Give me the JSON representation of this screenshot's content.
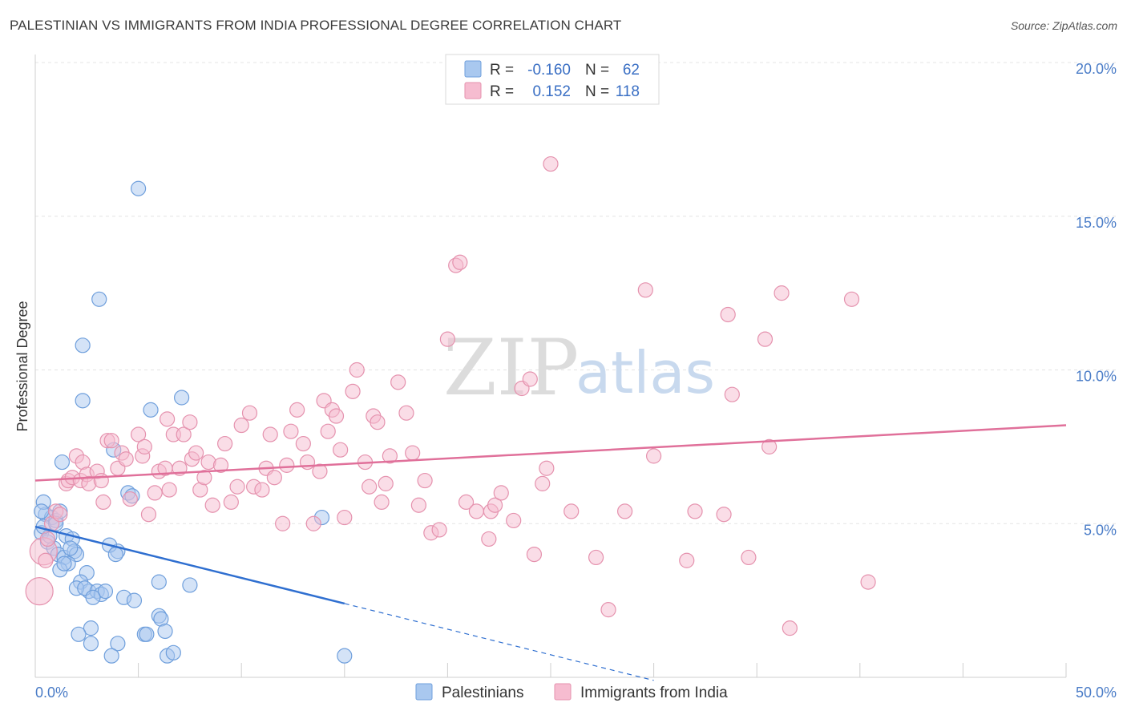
{
  "title": "PALESTINIAN VS IMMIGRANTS FROM INDIA PROFESSIONAL DEGREE CORRELATION CHART",
  "source": "Source: ZipAtlas.com",
  "watermark": {
    "zip": "ZIP",
    "atlas": "atlas"
  },
  "colors": {
    "blue_fill": "#a9c8ef",
    "blue_stroke": "#6f9fdc",
    "blue_line": "#2f6fd0",
    "pink_fill": "#f6bcd0",
    "pink_stroke": "#e592ae",
    "pink_line": "#e0709a",
    "tick": "#4a7cc7"
  },
  "legend": {
    "rows": [
      {
        "r_label": "R =",
        "r_value": "-0.160",
        "n_label": "N =",
        "n_value": "62"
      },
      {
        "r_label": "R =",
        "r_value": "0.152",
        "n_label": "N =",
        "n_value": "118"
      }
    ]
  },
  "chart_data": {
    "type": "scatter",
    "ylabel": "Professional Degree",
    "xlim": [
      0,
      50
    ],
    "ylim": [
      0,
      20
    ],
    "x_tick_labels": [
      "0.0%",
      "50.0%"
    ],
    "y_ticks": [
      {
        "value": 5,
        "label": "5.0%"
      },
      {
        "value": 10,
        "label": "10.0%"
      },
      {
        "value": 15,
        "label": "15.0%"
      },
      {
        "value": 20,
        "label": "20.0%"
      }
    ],
    "grid": true,
    "legend_position": "top-center",
    "series": [
      {
        "name": "Palestinians",
        "color": "blue",
        "trend": {
          "x0": 0,
          "y0": 4.9,
          "x1": 15,
          "y1": 2.4,
          "dash_to_x": 30
        },
        "points": [
          [
            0.3,
            4.7
          ],
          [
            0.5,
            5.3
          ],
          [
            0.4,
            5.7
          ],
          [
            0.8,
            5.2
          ],
          [
            1.0,
            5.1
          ],
          [
            1.2,
            5.4
          ],
          [
            0.6,
            4.4
          ],
          [
            0.9,
            4.2
          ],
          [
            1.1,
            4.0
          ],
          [
            1.5,
            4.6
          ],
          [
            1.8,
            4.5
          ],
          [
            1.4,
            3.9
          ],
          [
            1.9,
            4.1
          ],
          [
            2.0,
            4.0
          ],
          [
            1.6,
            3.7
          ],
          [
            1.2,
            3.5
          ],
          [
            2.5,
            3.4
          ],
          [
            2.2,
            3.1
          ],
          [
            2.6,
            2.8
          ],
          [
            2.0,
            2.9
          ],
          [
            2.4,
            2.9
          ],
          [
            3.0,
            2.8
          ],
          [
            3.2,
            2.7
          ],
          [
            3.4,
            2.8
          ],
          [
            4.0,
            4.1
          ],
          [
            3.6,
            4.3
          ],
          [
            3.9,
            4.0
          ],
          [
            4.3,
            2.6
          ],
          [
            4.8,
            2.5
          ],
          [
            6.0,
            3.1
          ],
          [
            7.5,
            3.0
          ],
          [
            1.3,
            7.0
          ],
          [
            2.3,
            9.0
          ],
          [
            2.3,
            10.8
          ],
          [
            3.1,
            12.3
          ],
          [
            5.0,
            15.9
          ],
          [
            3.8,
            7.4
          ],
          [
            4.5,
            6.0
          ],
          [
            4.7,
            5.9
          ],
          [
            5.6,
            8.7
          ],
          [
            7.1,
            9.1
          ],
          [
            13.9,
            5.2
          ],
          [
            6.0,
            2.0
          ],
          [
            6.1,
            1.9
          ],
          [
            5.3,
            1.4
          ],
          [
            5.4,
            1.4
          ],
          [
            6.3,
            1.5
          ],
          [
            2.7,
            1.6
          ],
          [
            2.1,
            1.4
          ],
          [
            2.7,
            1.1
          ],
          [
            4.0,
            1.1
          ],
          [
            3.7,
            0.7
          ],
          [
            6.4,
            0.7
          ],
          [
            6.7,
            0.8
          ],
          [
            15.0,
            0.7
          ],
          [
            0.7,
            4.6
          ],
          [
            0.4,
            4.9
          ],
          [
            1.7,
            4.2
          ],
          [
            0.3,
            5.4
          ],
          [
            1.0,
            5.0
          ],
          [
            1.4,
            3.7
          ],
          [
            2.8,
            2.6
          ]
        ]
      },
      {
        "name": "Immigrants from India",
        "color": "pink",
        "trend": {
          "x0": 0,
          "y0": 6.4,
          "x1": 50,
          "y1": 8.2
        },
        "points": [
          [
            0.4,
            4.1
          ],
          [
            0.5,
            3.8
          ],
          [
            0.6,
            4.5
          ],
          [
            0.8,
            5.0
          ],
          [
            1.0,
            5.4
          ],
          [
            1.2,
            5.3
          ],
          [
            0.2,
            2.8
          ],
          [
            1.5,
            6.3
          ],
          [
            1.6,
            6.4
          ],
          [
            1.8,
            6.5
          ],
          [
            2.0,
            7.2
          ],
          [
            2.2,
            6.4
          ],
          [
            2.3,
            7.0
          ],
          [
            2.5,
            6.6
          ],
          [
            2.6,
            6.3
          ],
          [
            3.0,
            6.7
          ],
          [
            3.2,
            6.4
          ],
          [
            3.3,
            5.7
          ],
          [
            3.5,
            7.7
          ],
          [
            3.7,
            7.7
          ],
          [
            4.0,
            6.8
          ],
          [
            4.2,
            7.3
          ],
          [
            4.4,
            7.1
          ],
          [
            4.6,
            5.8
          ],
          [
            5.0,
            7.9
          ],
          [
            5.2,
            7.2
          ],
          [
            5.3,
            7.5
          ],
          [
            5.5,
            5.3
          ],
          [
            5.8,
            6.0
          ],
          [
            6.0,
            6.7
          ],
          [
            6.3,
            6.8
          ],
          [
            6.4,
            8.4
          ],
          [
            6.5,
            6.1
          ],
          [
            6.7,
            7.9
          ],
          [
            7.0,
            6.8
          ],
          [
            7.2,
            7.9
          ],
          [
            7.5,
            8.3
          ],
          [
            7.6,
            7.1
          ],
          [
            7.8,
            7.3
          ],
          [
            8.0,
            6.1
          ],
          [
            8.2,
            6.5
          ],
          [
            8.4,
            7.0
          ],
          [
            8.6,
            5.6
          ],
          [
            9.0,
            6.9
          ],
          [
            9.2,
            7.6
          ],
          [
            9.5,
            5.7
          ],
          [
            9.8,
            6.2
          ],
          [
            10.0,
            8.2
          ],
          [
            10.4,
            8.6
          ],
          [
            10.6,
            6.2
          ],
          [
            11.0,
            6.1
          ],
          [
            11.2,
            6.8
          ],
          [
            11.4,
            7.9
          ],
          [
            11.6,
            6.5
          ],
          [
            12.0,
            5.0
          ],
          [
            12.2,
            6.9
          ],
          [
            12.4,
            8.0
          ],
          [
            12.7,
            8.7
          ],
          [
            13.0,
            7.6
          ],
          [
            13.2,
            7.0
          ],
          [
            13.5,
            5.0
          ],
          [
            13.8,
            6.7
          ],
          [
            14.0,
            9.0
          ],
          [
            14.2,
            8.0
          ],
          [
            14.4,
            8.7
          ],
          [
            14.6,
            8.5
          ],
          [
            14.8,
            7.4
          ],
          [
            15.0,
            5.2
          ],
          [
            15.4,
            9.3
          ],
          [
            15.6,
            10.0
          ],
          [
            16.0,
            7.0
          ],
          [
            16.2,
            6.2
          ],
          [
            16.4,
            8.5
          ],
          [
            16.6,
            8.3
          ],
          [
            16.8,
            5.7
          ],
          [
            17.0,
            6.3
          ],
          [
            17.2,
            7.2
          ],
          [
            17.6,
            9.6
          ],
          [
            18.0,
            8.6
          ],
          [
            18.3,
            7.3
          ],
          [
            18.6,
            5.6
          ],
          [
            18.9,
            6.4
          ],
          [
            19.2,
            4.7
          ],
          [
            19.6,
            4.8
          ],
          [
            20.0,
            11.0
          ],
          [
            20.4,
            13.4
          ],
          [
            20.6,
            13.5
          ],
          [
            20.9,
            5.7
          ],
          [
            21.4,
            5.4
          ],
          [
            22.0,
            4.5
          ],
          [
            22.1,
            5.4
          ],
          [
            22.3,
            5.6
          ],
          [
            22.6,
            6.0
          ],
          [
            23.2,
            5.1
          ],
          [
            23.6,
            9.4
          ],
          [
            24.0,
            9.7
          ],
          [
            24.2,
            4.0
          ],
          [
            24.6,
            6.3
          ],
          [
            24.8,
            6.8
          ],
          [
            25.0,
            16.7
          ],
          [
            26.0,
            5.4
          ],
          [
            27.2,
            3.9
          ],
          [
            27.8,
            2.2
          ],
          [
            28.6,
            5.4
          ],
          [
            29.6,
            12.6
          ],
          [
            30.0,
            7.2
          ],
          [
            31.6,
            3.8
          ],
          [
            32.0,
            5.4
          ],
          [
            33.4,
            5.3
          ],
          [
            33.6,
            11.8
          ],
          [
            33.8,
            9.2
          ],
          [
            34.6,
            3.9
          ],
          [
            35.4,
            11.0
          ],
          [
            35.6,
            7.5
          ],
          [
            36.2,
            12.5
          ],
          [
            36.6,
            1.6
          ],
          [
            39.6,
            12.3
          ],
          [
            40.4,
            3.1
          ]
        ]
      }
    ]
  },
  "bottom_legend": [
    "Palestinians",
    "Immigrants from India"
  ]
}
